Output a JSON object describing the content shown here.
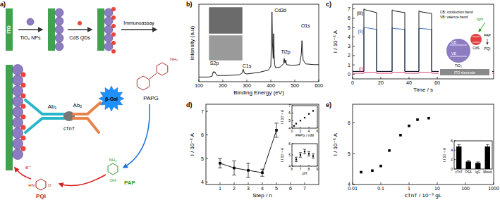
{
  "diagram": {
    "panel": "a)",
    "electrode": "ITO",
    "steps": [
      "TiO₂ NPs",
      "CdS QDs",
      "Immunoassay"
    ],
    "ab1": "Ab₁",
    "ab2": "Ab₂",
    "antigen": "cTnT",
    "enzyme": "β-Gal",
    "substrate": "PAPG",
    "substrate_groups": [
      "NH₂"
    ],
    "product": "PAP",
    "product_groups": [
      "NH₂",
      "OH"
    ],
    "oxidized": "PQI",
    "oxidized_groups": [
      "HN",
      "O"
    ],
    "electron": "e⁻"
  },
  "chart_data": [
    {
      "panel": "b)",
      "type": "line",
      "xlabel": "Binding Energy (eV)",
      "ylabel": "Intensity (a.u)",
      "x": [
        100,
        140,
        155,
        160,
        163,
        166,
        175,
        220,
        270,
        280,
        285,
        290,
        300,
        350,
        390,
        400,
        403,
        405,
        407,
        410,
        412,
        414,
        416,
        420,
        440,
        452,
        456,
        459,
        462,
        466,
        490,
        520,
        527,
        530,
        532,
        535,
        545,
        580,
        600
      ],
      "series": [
        {
          "color": "#000000",
          "values": [
            0.6,
            0.6,
            0.7,
            1.3,
            1.1,
            1.3,
            0.8,
            0.8,
            0.9,
            1.1,
            1.6,
            1.1,
            1.0,
            1.2,
            1.5,
            2.0,
            5.5,
            9.0,
            5.0,
            3.0,
            6.2,
            3.5,
            2.2,
            1.8,
            1.9,
            2.3,
            3.0,
            2.4,
            2.8,
            2.2,
            2.1,
            2.2,
            3.5,
            5.3,
            4.2,
            2.8,
            2.3,
            2.2,
            2.2
          ]
        }
      ],
      "xlim": [
        100,
        600
      ],
      "xticks": [
        100,
        200,
        300,
        400,
        500,
        600
      ],
      "ylim": [
        0,
        10
      ],
      "tick_labels": "x",
      "annotations": [
        {
          "text": "S2p",
          "x": 165,
          "y": 2.2
        },
        {
          "text": "C1s",
          "x": 300,
          "y": 1.8
        },
        {
          "text": "Cd3d",
          "x": 440,
          "y": 9
        },
        {
          "text": "Ti2p",
          "x": 462,
          "y": 3.6
        },
        {
          "text": "O1s",
          "x": 545,
          "y": 7
        }
      ]
    },
    {
      "panel": "c)",
      "type": "line",
      "xlabel": "Time / s",
      "ylabel": "I / 10⁻⁶ A",
      "xlim": [
        0,
        100
      ],
      "xticks": [
        0,
        20,
        40,
        60
      ],
      "ylim": [
        -0.5,
        7.5
      ],
      "yticks": [
        0,
        1,
        2,
        3,
        4,
        5,
        6,
        7
      ],
      "series": [
        {
          "name": "(i)",
          "color": "#d6336c",
          "x": [
            0,
            8,
            8,
            9,
            17,
            17,
            28,
            28,
            29,
            37,
            37,
            47,
            47,
            48,
            56,
            56,
            100
          ],
          "values": [
            0.1,
            0.1,
            0.2,
            0.2,
            0.2,
            0.1,
            0.1,
            0.2,
            0.2,
            0.2,
            0.1,
            0.1,
            0.2,
            0.2,
            0.2,
            0.1,
            0.1
          ]
        },
        {
          "name": "(ii)",
          "color": "#2b5fb4",
          "x": [
            0,
            8,
            8,
            9,
            17,
            17,
            28,
            28,
            29,
            37,
            37,
            47,
            47,
            48,
            56,
            56,
            100
          ],
          "values": [
            0.3,
            0.3,
            5.0,
            5.0,
            4.8,
            0.3,
            0.3,
            5.0,
            4.9,
            4.8,
            0.3,
            0.3,
            4.9,
            4.9,
            4.8,
            0.3,
            0.3
          ]
        },
        {
          "name": "(iii)",
          "color": "#000000",
          "x": [
            0,
            8,
            8,
            9,
            17,
            17,
            28,
            28,
            29,
            37,
            37,
            47,
            47,
            48,
            56,
            56,
            100
          ],
          "values": [
            0.3,
            0.3,
            7.0,
            6.9,
            6.6,
            0.3,
            0.3,
            6.9,
            6.8,
            6.6,
            0.3,
            0.3,
            6.8,
            6.7,
            6.5,
            0.3,
            0.3
          ]
        }
      ],
      "inset_labels": [
        "light",
        "TiO₂",
        "CdS",
        "CB",
        "VB",
        "PAP",
        "PQI",
        "ITO electrode",
        "CB: conduction band",
        "VB: valence band"
      ]
    },
    {
      "panel": "d)",
      "type": "scatter",
      "xlabel": "Step / n",
      "ylabel": "I / 10⁻⁶ A",
      "x": [
        1,
        2,
        3,
        4,
        5
      ],
      "xlim": [
        0,
        8
      ],
      "xticks": [
        1,
        2,
        3,
        4,
        5,
        6,
        7
      ],
      "ylim": [
        3.9,
        7.3
      ],
      "yticks": [
        4,
        5,
        6,
        7
      ],
      "series": [
        {
          "color": "#000000",
          "marker": "square",
          "line_style": "solid",
          "values": [
            4.8,
            4.6,
            4.5,
            4.4,
            6.2
          ],
          "errors": [
            0.2,
            0.3,
            0.3,
            0.15,
            0.3
          ]
        }
      ]
    },
    {
      "type": "scatter",
      "xlabel": "PAPG / mM",
      "ylabel": "I / 10⁻⁶ A",
      "x": [
        0.5,
        1,
        2,
        3,
        4,
        5
      ],
      "xlim": [
        0,
        6
      ],
      "xticks": [
        0,
        2,
        4,
        6
      ],
      "ylim": [
        4,
        7
      ],
      "yticks": [
        4,
        5,
        6,
        7
      ],
      "series": [
        {
          "color": "#000000",
          "marker": "square",
          "values": [
            4.3,
            4.6,
            5.0,
            5.4,
            5.9,
            6.3
          ]
        }
      ]
    },
    {
      "type": "scatter",
      "xlabel": "pH",
      "ylabel": "I / 10⁻⁶ A",
      "x": [
        6.5,
        7,
        7.5,
        8,
        8.5
      ],
      "xlim": [
        6,
        9
      ],
      "xticks": [
        6,
        7,
        8,
        9
      ],
      "ylim": [
        4,
        6
      ],
      "yticks": [
        4,
        5,
        6
      ],
      "series": [
        {
          "color": "#000000",
          "marker": "square",
          "values": [
            4.6,
            5.0,
            5.3,
            5.1,
            4.9
          ],
          "errors": [
            0.2,
            0.2,
            0.2,
            0.2,
            0.2
          ]
        }
      ]
    },
    {
      "panel": "e)",
      "type": "scatter",
      "log": "x",
      "xlabel": "cTnT / 10⁻⁹ gL",
      "ylabel": "I / 10⁻⁶ A",
      "x": [
        0.02,
        0.05,
        0.1,
        0.2,
        0.5,
        1,
        2,
        5
      ],
      "xlim": [
        0.01,
        1000
      ],
      "xticks": [
        0.01,
        0.1,
        1,
        10,
        100,
        1000
      ],
      "ylim": [
        4,
        6.6
      ],
      "yticks": [
        4,
        5,
        6
      ],
      "series": [
        {
          "color": "#000000",
          "marker": "square",
          "values": [
            4.4,
            4.45,
            4.6,
            5.1,
            5.6,
            5.9,
            6.1,
            6.15
          ]
        }
      ]
    },
    {
      "type": "bar",
      "ylabel": "I / 10⁻⁶ A",
      "categories": [
        "cTnT",
        "PSA",
        "IgG",
        "Mixed"
      ],
      "values": [
        4.8,
        1.6,
        1.3,
        4.8
      ],
      "errors": [
        0.4,
        0.2,
        0.2,
        0.4
      ],
      "color": "#000000",
      "ylim": [
        0,
        6
      ],
      "yticks": [
        0,
        2,
        4,
        6
      ]
    }
  ]
}
